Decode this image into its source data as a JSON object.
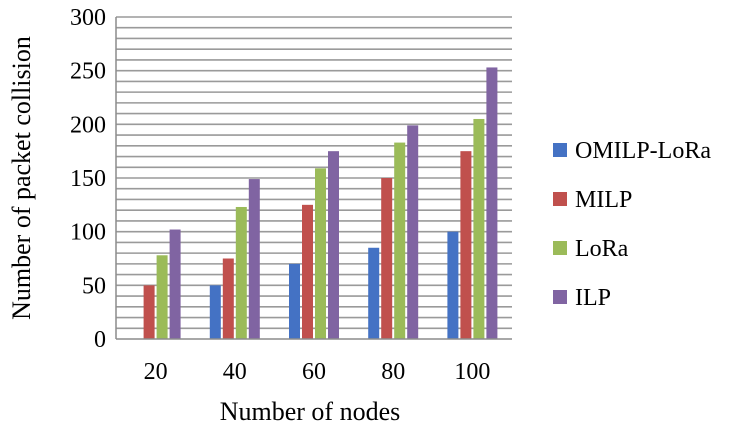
{
  "chart_data": {
    "type": "bar",
    "xlabel": "Number of nodes",
    "ylabel": "Number of packet collision",
    "categories": [
      "20",
      "40",
      "60",
      "80",
      "100"
    ],
    "ylim": [
      0,
      300
    ],
    "yticks": [
      0,
      50,
      100,
      150,
      200,
      250,
      300
    ],
    "grid": true,
    "legend_position": "right",
    "series": [
      {
        "name": "OMILP-LoRa",
        "color": "#4472C4",
        "values": [
          0,
          50,
          70,
          85,
          100
        ]
      },
      {
        "name": "MILP",
        "color": "#C0504D",
        "values": [
          50,
          75,
          125,
          150,
          175
        ]
      },
      {
        "name": "LoRa",
        "color": "#9BBB59",
        "values": [
          78,
          123,
          159,
          183,
          205
        ]
      },
      {
        "name": "ILP",
        "color": "#8064A2",
        "values": [
          102,
          149,
          175,
          199,
          253
        ]
      }
    ]
  }
}
